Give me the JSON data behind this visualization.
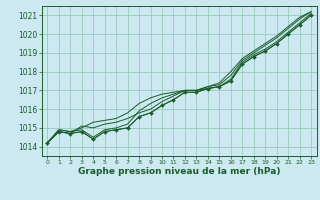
{
  "bg_color": "#cce8f0",
  "grid_color": "#99ccbb",
  "line_color": "#1a5c2a",
  "xlabel": "Graphe pression niveau de la mer (hPa)",
  "ylim": [
    1013.5,
    1021.5
  ],
  "xlim": [
    -0.5,
    23.5
  ],
  "yticks": [
    1014,
    1015,
    1016,
    1017,
    1018,
    1019,
    1020,
    1021
  ],
  "xticks": [
    0,
    1,
    2,
    3,
    4,
    5,
    6,
    7,
    8,
    9,
    10,
    11,
    12,
    13,
    14,
    15,
    16,
    17,
    18,
    19,
    20,
    21,
    22,
    23
  ],
  "series": [
    [
      1014.2,
      1014.8,
      1014.7,
      1014.8,
      1014.4,
      1014.8,
      1014.9,
      1015.0,
      1015.6,
      1015.8,
      1016.2,
      1016.5,
      1016.9,
      1016.9,
      1017.1,
      1017.2,
      1017.5,
      1018.4,
      1018.8,
      1019.1,
      1019.5,
      1020.0,
      1020.5,
      1021.0
    ],
    [
      1014.2,
      1014.8,
      1014.7,
      1015.1,
      1015.0,
      1015.2,
      1015.3,
      1015.5,
      1015.8,
      1016.0,
      1016.4,
      1016.7,
      1017.0,
      1017.0,
      1017.1,
      1017.2,
      1017.6,
      1018.5,
      1018.9,
      1019.2,
      1019.6,
      1020.1,
      1020.6,
      1021.1
    ],
    [
      1014.2,
      1014.9,
      1014.8,
      1014.9,
      1014.5,
      1014.9,
      1015.0,
      1015.2,
      1015.9,
      1016.3,
      1016.6,
      1016.8,
      1017.0,
      1017.0,
      1017.2,
      1017.3,
      1017.8,
      1018.6,
      1019.0,
      1019.4,
      1019.8,
      1020.3,
      1020.8,
      1021.2
    ],
    [
      1014.2,
      1014.9,
      1014.8,
      1015.0,
      1015.3,
      1015.4,
      1015.5,
      1015.8,
      1016.3,
      1016.6,
      1016.8,
      1016.9,
      1017.0,
      1017.0,
      1017.2,
      1017.4,
      1018.0,
      1018.7,
      1019.1,
      1019.5,
      1019.9,
      1020.4,
      1020.9,
      1021.2
    ]
  ],
  "marker_y": [
    1014.2,
    1014.8,
    1014.7,
    1014.8,
    1014.4,
    1014.8,
    1014.9,
    1015.0,
    1015.6,
    1015.8,
    1016.2,
    1016.5,
    1016.9,
    1016.9,
    1017.1,
    1017.2,
    1017.5,
    1018.4,
    1018.8,
    1019.1,
    1019.5,
    1020.0,
    1020.5,
    1021.0
  ],
  "tick_fontsize": 5.5,
  "xlabel_fontsize": 6.5
}
